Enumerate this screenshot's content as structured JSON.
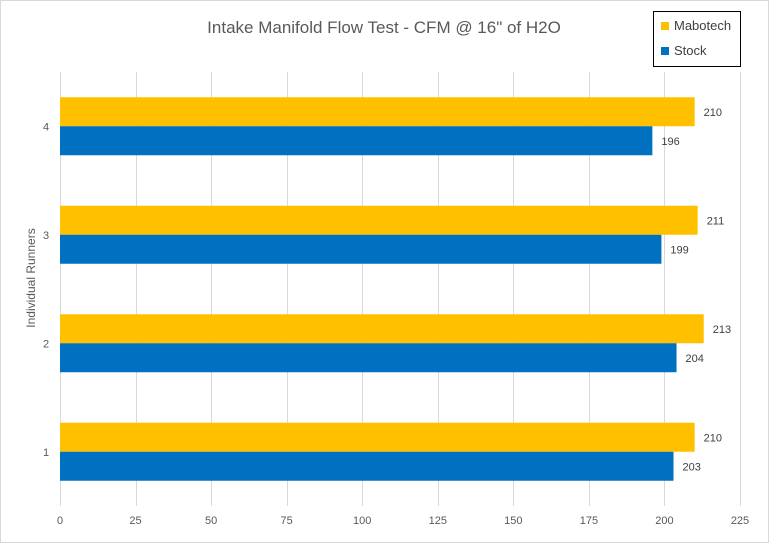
{
  "chart_data": {
    "type": "bar",
    "orientation": "horizontal",
    "title": "Intake Manifold Flow Test - CFM @ 16\" of H2O",
    "xlabel": "",
    "ylabel": "Individual Runners",
    "categories": [
      "1",
      "2",
      "3",
      "4"
    ],
    "xlim": [
      0,
      225
    ],
    "x_ticks": [
      0,
      25,
      50,
      75,
      100,
      125,
      150,
      175,
      200,
      225
    ],
    "grid": true,
    "legend_position": "top-right",
    "series": [
      {
        "name": "Mabotech",
        "color": "#ffc000",
        "values": [
          210,
          213,
          211,
          210
        ]
      },
      {
        "name": "Stock",
        "color": "#0070c0",
        "values": [
          203,
          204,
          199,
          196
        ]
      }
    ]
  }
}
